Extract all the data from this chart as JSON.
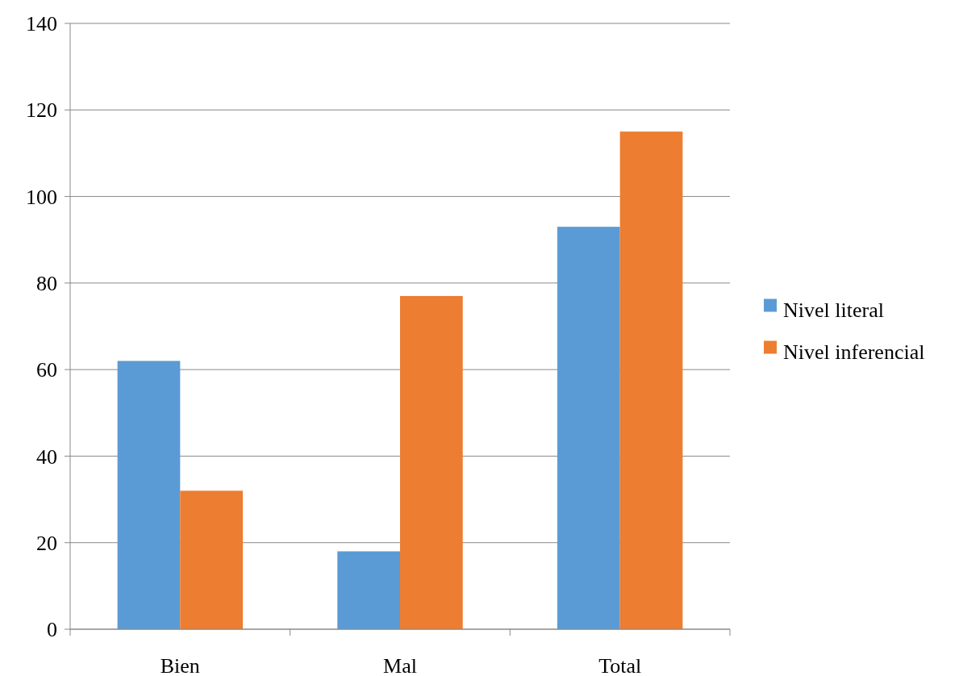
{
  "chart_data": {
    "type": "bar",
    "categories": [
      "Bien",
      "Mal",
      "Total"
    ],
    "series": [
      {
        "name": "Nivel literal",
        "color": "#5b9bd5",
        "values": [
          62,
          18,
          93
        ]
      },
      {
        "name": "Nivel inferencial",
        "color": "#ed7d31",
        "values": [
          32,
          77,
          115
        ]
      }
    ],
    "ylim": [
      0,
      140
    ],
    "yticks": [
      0,
      20,
      40,
      60,
      80,
      100,
      120,
      140
    ],
    "grid": "y",
    "legend": "right"
  }
}
